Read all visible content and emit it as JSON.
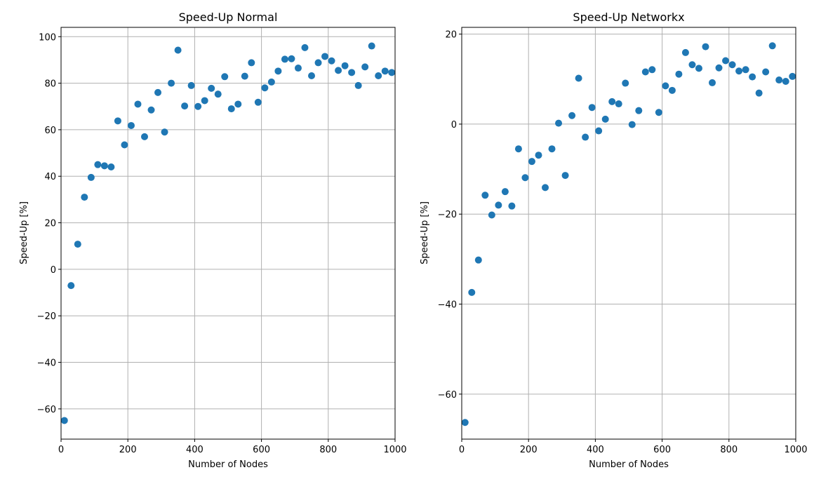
{
  "chart_data": [
    {
      "type": "scatter",
      "title": "Speed-Up Normal",
      "xlabel": "Number of Nodes",
      "ylabel": "Speed-Up [%]",
      "xlim": [
        0,
        1000
      ],
      "ylim": [
        -73,
        104
      ],
      "xticks": [
        0,
        200,
        400,
        600,
        800,
        1000
      ],
      "yticks": [
        -60,
        -40,
        -20,
        0,
        20,
        40,
        60,
        80,
        100
      ],
      "grid": true,
      "color": "#1f77b4",
      "x": [
        10,
        30,
        50,
        70,
        90,
        110,
        130,
        150,
        170,
        190,
        210,
        230,
        250,
        270,
        290,
        310,
        330,
        350,
        370,
        390,
        410,
        430,
        450,
        470,
        490,
        510,
        530,
        550,
        570,
        590,
        610,
        630,
        650,
        670,
        690,
        710,
        730,
        750,
        770,
        790,
        810,
        830,
        850,
        870,
        890,
        910,
        930,
        950,
        970,
        990
      ],
      "y": [
        -65,
        -7,
        10.8,
        31,
        39.5,
        45,
        44.5,
        44,
        63.8,
        53.5,
        61.8,
        71,
        57,
        68.5,
        76,
        59,
        80,
        94.2,
        70.2,
        79,
        70,
        72.5,
        77.8,
        75.3,
        82.8,
        69,
        71,
        83,
        88.8,
        71.8,
        78,
        80.5,
        85.2,
        90.3,
        90.5,
        86.5,
        95.3,
        83.2,
        88.8,
        91.5,
        89.6,
        85.5,
        87.5,
        84.6,
        79,
        87,
        96,
        83.2,
        85.2,
        84.6
      ]
    },
    {
      "type": "scatter",
      "title": "Speed-Up Networkx",
      "xlabel": "Number of Nodes",
      "ylabel": "Speed-Up [%]",
      "xlim": [
        0,
        1000
      ],
      "ylim": [
        -70,
        21.5
      ],
      "xticks": [
        0,
        200,
        400,
        600,
        800,
        1000
      ],
      "yticks": [
        -60,
        -40,
        -20,
        0,
        20
      ],
      "grid": true,
      "color": "#1f77b4",
      "x": [
        10,
        30,
        50,
        70,
        90,
        110,
        130,
        150,
        170,
        190,
        210,
        230,
        250,
        270,
        290,
        310,
        330,
        350,
        370,
        390,
        410,
        430,
        450,
        470,
        490,
        510,
        530,
        550,
        570,
        590,
        610,
        630,
        650,
        670,
        690,
        710,
        730,
        750,
        770,
        790,
        810,
        830,
        850,
        870,
        890,
        910,
        930,
        950,
        970,
        990
      ],
      "y": [
        -66.3,
        -37.4,
        -30.2,
        -15.8,
        -20.2,
        -18,
        -15,
        -18.2,
        -5.5,
        -11.9,
        -8.3,
        -6.9,
        -14.1,
        -5.5,
        0.2,
        -11.4,
        1.9,
        10.2,
        -2.9,
        3.7,
        -1.5,
        1.1,
        5,
        4.5,
        9.1,
        -0.1,
        3,
        11.6,
        12.1,
        2.6,
        8.5,
        7.5,
        11.1,
        15.9,
        13.2,
        12.4,
        17.2,
        9.2,
        12.5,
        14.1,
        13.2,
        11.8,
        12.1,
        10.5,
        6.9,
        11.6,
        17.4,
        9.8,
        9.5,
        10.6
      ]
    }
  ]
}
